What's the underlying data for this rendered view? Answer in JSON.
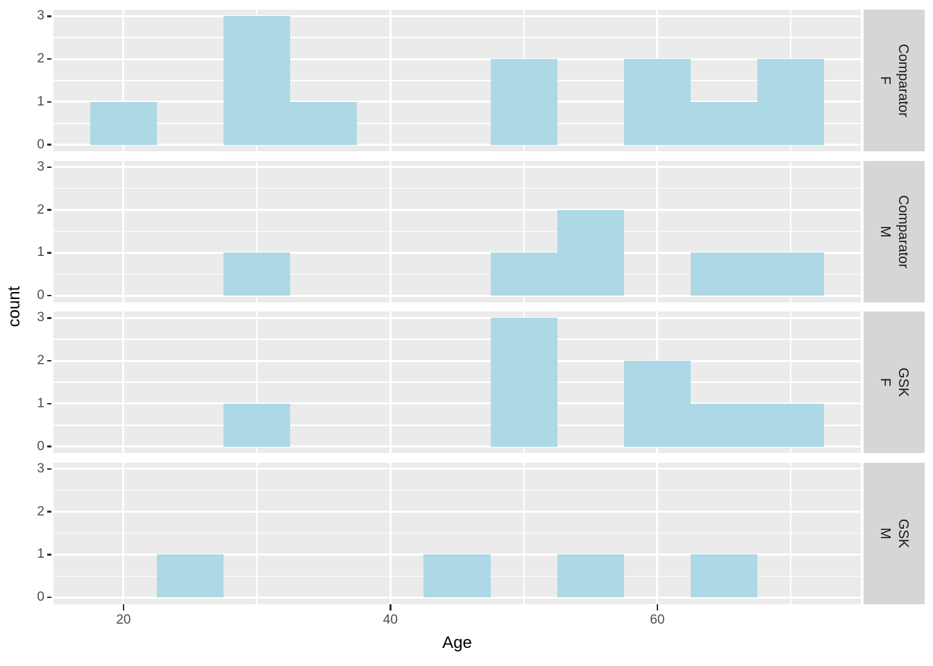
{
  "chart_data": {
    "type": "bar",
    "subtype": "faceted-histogram",
    "title": "",
    "xlabel": "Age",
    "ylabel": "count",
    "x_ticks": [
      20,
      40,
      60
    ],
    "x_minor_gridlines": [
      30,
      50,
      70
    ],
    "y_ticks": [
      0,
      1,
      2,
      3
    ],
    "y_minor_gridlines": [
      0.5,
      1.5,
      2.5
    ],
    "x_range": [
      14.75,
      75.25
    ],
    "y_range": [
      -0.15,
      3.15
    ],
    "binwidth": 5,
    "grid": true,
    "legend_position": "none",
    "facet_layout": "rows-right-strips",
    "facets": [
      {
        "strip_lines": [
          "Comparator",
          "F"
        ],
        "bins": [
          {
            "x0": 17.5,
            "x1": 22.5,
            "count": 1
          },
          {
            "x0": 27.5,
            "x1": 32.5,
            "count": 3
          },
          {
            "x0": 32.5,
            "x1": 37.5,
            "count": 1
          },
          {
            "x0": 47.5,
            "x1": 52.5,
            "count": 2
          },
          {
            "x0": 57.5,
            "x1": 62.5,
            "count": 2
          },
          {
            "x0": 62.5,
            "x1": 67.5,
            "count": 1
          },
          {
            "x0": 67.5,
            "x1": 72.5,
            "count": 2
          }
        ]
      },
      {
        "strip_lines": [
          "Comparator",
          "M"
        ],
        "bins": [
          {
            "x0": 27.5,
            "x1": 32.5,
            "count": 1
          },
          {
            "x0": 47.5,
            "x1": 52.5,
            "count": 1
          },
          {
            "x0": 52.5,
            "x1": 57.5,
            "count": 2
          },
          {
            "x0": 62.5,
            "x1": 67.5,
            "count": 1
          },
          {
            "x0": 67.5,
            "x1": 72.5,
            "count": 1
          }
        ]
      },
      {
        "strip_lines": [
          "GSK",
          "F"
        ],
        "bins": [
          {
            "x0": 27.5,
            "x1": 32.5,
            "count": 1
          },
          {
            "x0": 47.5,
            "x1": 52.5,
            "count": 3
          },
          {
            "x0": 57.5,
            "x1": 62.5,
            "count": 2
          },
          {
            "x0": 62.5,
            "x1": 67.5,
            "count": 1
          },
          {
            "x0": 67.5,
            "x1": 72.5,
            "count": 1
          }
        ]
      },
      {
        "strip_lines": [
          "GSK",
          "M"
        ],
        "bins": [
          {
            "x0": 22.5,
            "x1": 27.5,
            "count": 1
          },
          {
            "x0": 42.5,
            "x1": 47.5,
            "count": 1
          },
          {
            "x0": 52.5,
            "x1": 57.5,
            "count": 1
          },
          {
            "x0": 62.5,
            "x1": 67.5,
            "count": 1
          }
        ]
      }
    ],
    "colors": {
      "bar_fill": "#ADD8E6",
      "panel_bg": "#EBEBEB",
      "strip_bg": "#D6D6D6",
      "strip_text": "#1A1A1A",
      "axis_text": "#4D4D4D",
      "tick_mark": "#333333",
      "gridline": "#FFFFFF",
      "title_text": "#000000"
    }
  }
}
